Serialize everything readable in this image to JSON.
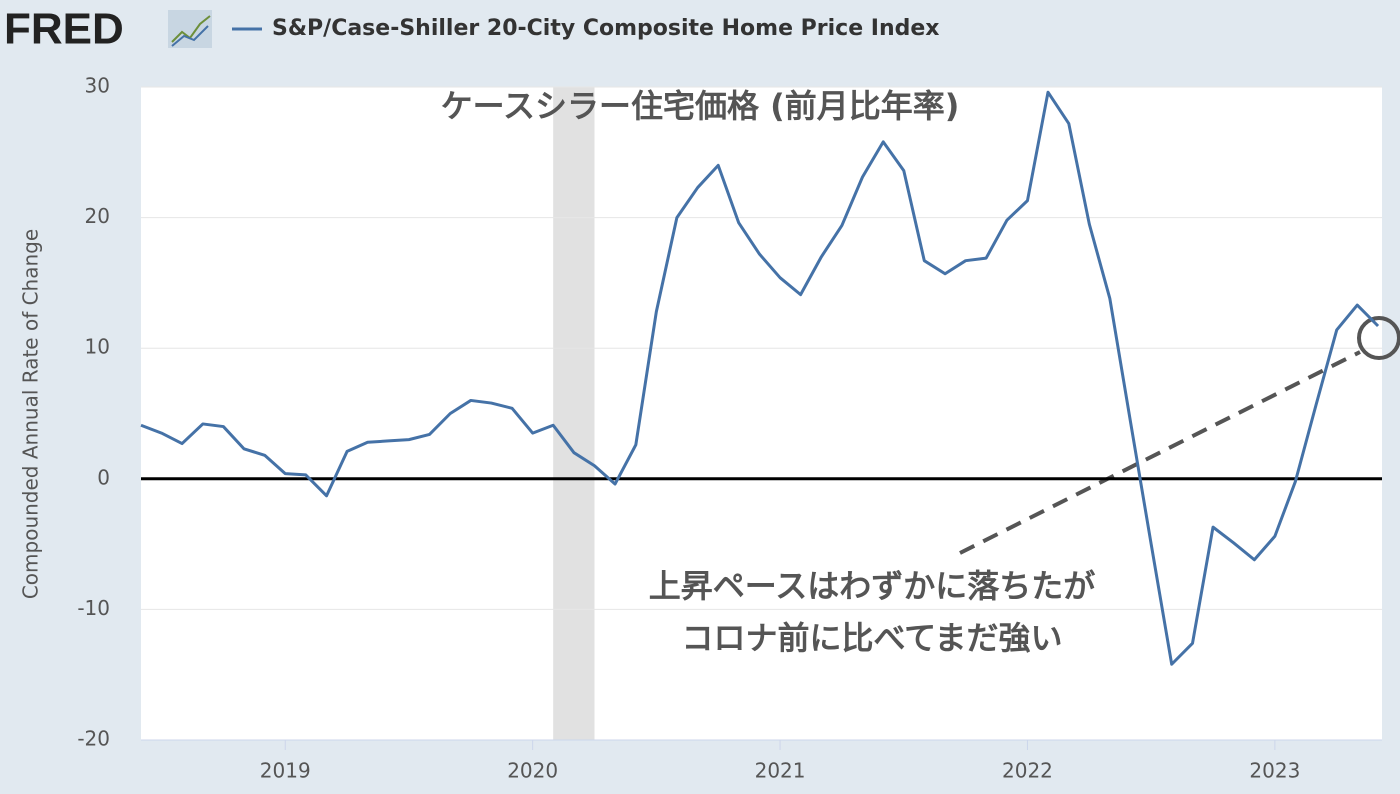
{
  "header": {
    "logo": "FRED"
  },
  "chart_data": {
    "type": "line",
    "title": "ケースシラー住宅価格 (前月比年率)",
    "annotation": [
      "上昇ペースはわずかに落ちたが",
      "コロナ前に比べてまだ強い"
    ],
    "y_label": "Compounded Annual Rate of Change",
    "x": [
      2018.417,
      2018.5,
      2018.583,
      2018.667,
      2018.75,
      2018.833,
      2018.917,
      2019,
      2019.083,
      2019.167,
      2019.25,
      2019.333,
      2019.417,
      2019.5,
      2019.583,
      2019.667,
      2019.75,
      2019.833,
      2019.917,
      2020,
      2020.083,
      2020.167,
      2020.25,
      2020.333,
      2020.417,
      2020.5,
      2020.583,
      2020.667,
      2020.75,
      2020.833,
      2020.917,
      2021,
      2021.083,
      2021.167,
      2021.25,
      2021.333,
      2021.417,
      2021.5,
      2021.583,
      2021.667,
      2021.75,
      2021.833,
      2021.917,
      2022,
      2022.083,
      2022.167,
      2022.25,
      2022.333,
      2022.417,
      2022.5,
      2022.583,
      2022.667,
      2022.75,
      2022.833,
      2022.917,
      2023,
      2023.083,
      2023.167,
      2023.25,
      2023.333,
      2023.417
    ],
    "series": [
      {
        "name": "S&P/Case-Shiller 20-City Composite Home Price Index",
        "color": "#4572a7",
        "values": [
          4.1,
          3.5,
          2.7,
          4.2,
          4.0,
          2.3,
          1.8,
          0.4,
          0.3,
          -1.3,
          2.1,
          2.8,
          2.9,
          3.0,
          3.4,
          5.0,
          6.0,
          5.8,
          5.4,
          3.5,
          4.1,
          2.0,
          1.0,
          -0.4,
          2.6,
          12.8,
          20.0,
          22.3,
          24.0,
          19.6,
          17.2,
          15.4,
          14.1,
          17.0,
          19.4,
          23.1,
          25.8,
          23.6,
          16.7,
          15.7,
          16.7,
          16.9,
          19.8,
          21.3,
          29.6,
          27.2,
          19.5,
          13.8,
          4.3,
          -5.0,
          -14.2,
          -12.6,
          -3.7,
          -4.9,
          -6.2,
          -4.4,
          -0.2,
          5.7,
          11.4,
          13.3,
          11.7
        ]
      }
    ],
    "shaded": [
      2020.083,
      2020.25
    ],
    "xlim": [
      2018.417,
      2023.433
    ],
    "xticks": [
      2019,
      2020,
      2021,
      2022,
      2023
    ],
    "ylim": [
      -20,
      30
    ],
    "yticks": [
      30,
      20,
      10,
      0,
      -10,
      -20
    ],
    "grid": true
  }
}
